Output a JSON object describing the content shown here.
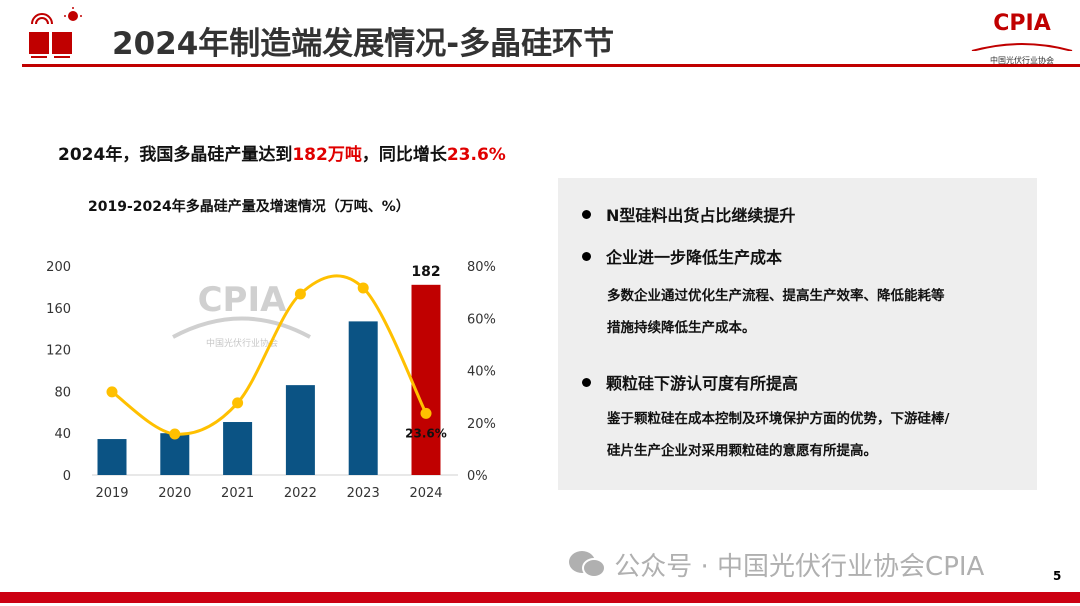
{
  "header": {
    "title": "2024年制造端发展情况-多晶硅环节",
    "logo": {
      "text": "CPIA",
      "subtitle": "中国光伏行业协会"
    }
  },
  "summary": {
    "prefix": "2024年，我国多晶硅产量达到",
    "value": "182万吨",
    "middle": "，同比增长",
    "growth": "23.6%"
  },
  "chart_data": {
    "type": "bar+line",
    "title": "2019-2024年多晶硅产量及增速情况（万吨、%）",
    "categories": [
      "2019",
      "2020",
      "2021",
      "2022",
      "2023",
      "2024"
    ],
    "series": [
      {
        "type": "bar",
        "values": [
          34.4,
          40,
          50.7,
          86,
          147,
          182
        ],
        "colors": [
          "#0b5384",
          "#0b5384",
          "#0b5384",
          "#0b5384",
          "#0b5384",
          "#c00000"
        ],
        "axis": "left"
      },
      {
        "type": "line",
        "values": [
          31.8,
          15.7,
          27.6,
          69.3,
          71.6,
          23.6
        ],
        "color": "#ffc000",
        "axis": "right",
        "smooth": true
      }
    ],
    "ylim": [
      0,
      200
    ],
    "yticks": [
      "0",
      "40",
      "80",
      "120",
      "160",
      "200"
    ],
    "y2lim": [
      0,
      80
    ],
    "y2ticks": [
      "0%",
      "20%",
      "40%",
      "60%",
      "80%"
    ],
    "data_labels": {
      "bar_2024": "182",
      "line_2024": "23.6%"
    },
    "watermark": {
      "text": "CPIA",
      "subtitle": "中国光伏行业协会"
    }
  },
  "panel": {
    "bullets": [
      {
        "title": "N型硅料出货占比继续提升",
        "lines": []
      },
      {
        "title": "企业进一步降低生产成本",
        "lines": [
          "多数企业通过优化生产流程、提高生产效率、降低能耗等",
          "措施持续降低生产成本。"
        ]
      },
      {
        "title": "颗粒硅下游认可度有所提高",
        "lines": [
          "鉴于颗粒硅在成本控制及环境保护方面的优势，下游硅棒/",
          "硅片生产企业对采用颗粒硅的意愿有所提高。"
        ]
      }
    ]
  },
  "footer": {
    "watermark": "公众号 · 中国光伏行业协会CPIA",
    "page": "5"
  }
}
